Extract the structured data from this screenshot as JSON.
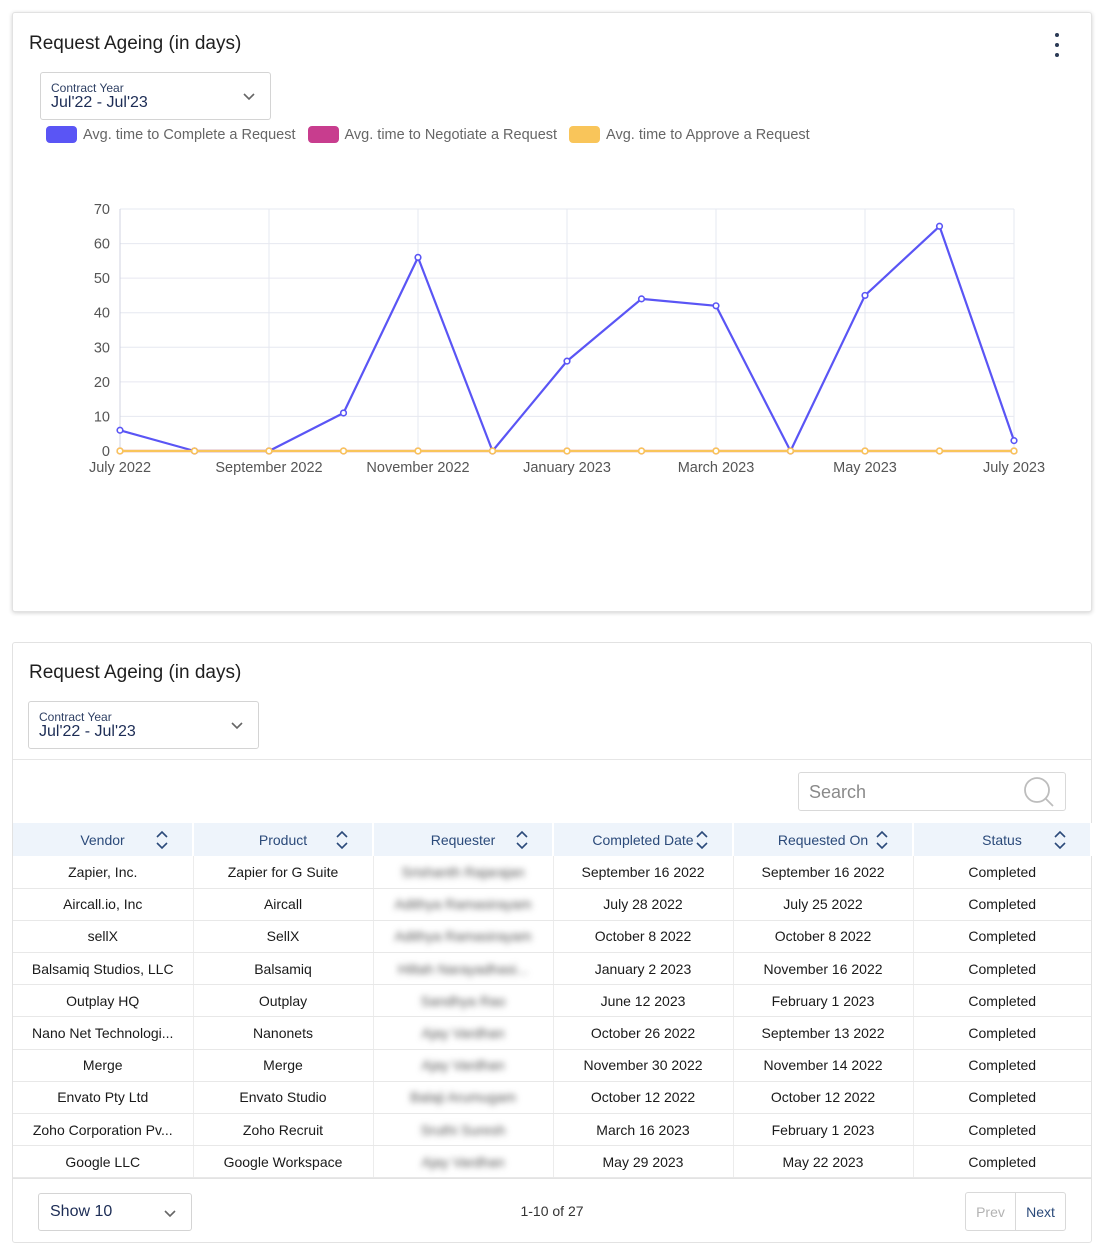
{
  "chart_card": {
    "title": "Request Ageing (in days)",
    "select": {
      "label": "Contract Year",
      "value": "Jul'22 - Jul'23"
    }
  },
  "legend": [
    {
      "label": "Avg. time to Complete a Request",
      "color": "#5a55f5"
    },
    {
      "label": "Avg. time to Negotiate a Request",
      "color": "#c83d8e"
    },
    {
      "label": "Avg. time to Approve a Request",
      "color": "#f9c55a"
    }
  ],
  "chart_data": {
    "type": "line",
    "title": "",
    "xlabel": "",
    "ylabel": "",
    "ylim": [
      0,
      70
    ],
    "yticks": [
      0,
      10,
      20,
      30,
      40,
      50,
      60,
      70
    ],
    "x": [
      "2022-07",
      "2022-08",
      "2022-09",
      "2022-10",
      "2022-11",
      "2022-12",
      "2023-01",
      "2023-02",
      "2023-03",
      "2023-04",
      "2023-05",
      "2023-06",
      "2023-07"
    ],
    "xtick_labels": [
      "July 2022",
      "September 2022",
      "November 2022",
      "January 2023",
      "March 2023",
      "May 2023",
      "July 2023"
    ],
    "grid": true,
    "legend_position": "top-left",
    "series": [
      {
        "name": "Avg. time to Complete a Request",
        "color": "#5a55f5",
        "values": [
          6,
          0,
          0,
          11,
          56,
          0,
          26,
          44,
          42,
          0,
          45,
          65,
          3
        ]
      },
      {
        "name": "Avg. time to Negotiate a Request",
        "color": "#c83d8e",
        "values": [
          0,
          0,
          0,
          0,
          0,
          0,
          0,
          0,
          0,
          0,
          0,
          0,
          0
        ]
      },
      {
        "name": "Avg. time to Approve a Request",
        "color": "#f9c55a",
        "values": [
          0,
          0,
          0,
          0,
          0,
          0,
          0,
          0,
          0,
          0,
          0,
          0,
          0
        ]
      }
    ]
  },
  "table_card": {
    "title": "Request Ageing (in days)",
    "select": {
      "label": "Contract Year",
      "value": "Jul'22 - Jul'23"
    },
    "search_placeholder": "Search",
    "columns": [
      "Vendor",
      "Product",
      "Requester",
      "Completed Date",
      "Requested On",
      "Status"
    ],
    "rows": [
      [
        "Zapier, Inc.",
        "Zapier for G Suite",
        "Srishanth Rajarajan",
        "September 16 2022",
        "September 16 2022",
        "Completed"
      ],
      [
        "Aircall.io, Inc",
        "Aircall",
        "Adithya Ramasirayam",
        "July 28 2022",
        "July 25 2022",
        "Completed"
      ],
      [
        "sellX",
        "SellX",
        "Adithya Ramasirayam",
        "October 8 2022",
        "October 8 2022",
        "Completed"
      ],
      [
        "Balsamiq Studios, LLC",
        "Balsamiq",
        "Hiltah Narayadhasi...",
        "January 2 2023",
        "November 16 2022",
        "Completed"
      ],
      [
        "Outplay HQ",
        "Outplay",
        "Sandhya Rao",
        "June 12 2023",
        "February 1 2023",
        "Completed"
      ],
      [
        "Nano Net Technologi...",
        "Nanonets",
        "Ajay Vardhan",
        "October 26 2022",
        "September 13 2022",
        "Completed"
      ],
      [
        "Merge",
        "Merge",
        "Ajay Vardhan",
        "November 30 2022",
        "November 14 2022",
        "Completed"
      ],
      [
        "Envato Pty Ltd",
        "Envato Studio",
        "Balaji Arumugam",
        "October 12 2022",
        "October 12 2022",
        "Completed"
      ],
      [
        "Zoho Corporation Pv...",
        "Zoho Recruit",
        "Sruthi Suresh",
        "March 16 2023",
        "February 1 2023",
        "Completed"
      ],
      [
        "Google LLC",
        "Google Workspace",
        "Ajay Vardhan",
        "May 29 2023",
        "May 22 2023",
        "Completed"
      ]
    ],
    "page_size": "Show 10",
    "range_text": "1-10 of 27",
    "prev_label": "Prev",
    "next_label": "Next"
  }
}
